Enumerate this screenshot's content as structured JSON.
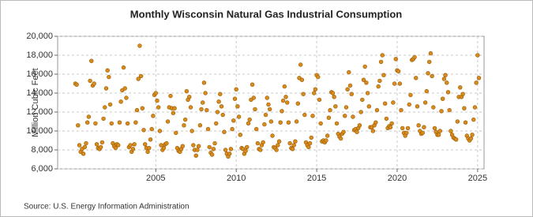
{
  "chart_data": {
    "type": "scatter",
    "title": "Monthly Wisconsin Natural Gas Industrial Consumption",
    "y_label": "Million Cubic Feet",
    "source": "Source: U.S. Energy Information Administration",
    "color": "#d98c1e",
    "grid": true,
    "xlim": [
      1998.9,
      2025.4
    ],
    "ylim": [
      6000,
      20000
    ],
    "xticks": [
      2005,
      2010,
      2015,
      2020,
      2025
    ],
    "yticks": [
      {
        "value": 6000,
        "label": "6,000"
      },
      {
        "value": 8000,
        "label": "8,000"
      },
      {
        "value": 10000,
        "label": "10,000"
      },
      {
        "value": 12000,
        "label": "12,000"
      },
      {
        "value": 14000,
        "label": "14,000"
      },
      {
        "value": 16000,
        "label": "16,000"
      },
      {
        "value": 18000,
        "label": "18,000"
      },
      {
        "value": 20000,
        "label": "20,000"
      }
    ],
    "x": [
      2000,
      2000.083,
      2000.167,
      2000.25,
      2000.333,
      2000.417,
      2000.5,
      2000.583,
      2000.667,
      2000.75,
      2000.833,
      2000.917,
      2001,
      2001.083,
      2001.167,
      2001.25,
      2001.333,
      2001.417,
      2001.5,
      2001.583,
      2001.667,
      2001.75,
      2001.833,
      2001.917,
      2002,
      2002.083,
      2002.167,
      2002.25,
      2002.333,
      2002.417,
      2002.5,
      2002.583,
      2002.667,
      2002.75,
      2002.833,
      2002.917,
      2003,
      2003.083,
      2003.167,
      2003.25,
      2003.333,
      2003.417,
      2003.5,
      2003.583,
      2003.667,
      2003.75,
      2003.833,
      2003.917,
      2004,
      2004.083,
      2004.167,
      2004.25,
      2004.333,
      2004.417,
      2004.5,
      2004.583,
      2004.667,
      2004.75,
      2004.833,
      2004.917,
      2005,
      2005.083,
      2005.167,
      2005.25,
      2005.333,
      2005.417,
      2005.5,
      2005.583,
      2005.667,
      2005.75,
      2005.833,
      2005.917,
      2006,
      2006.083,
      2006.167,
      2006.25,
      2006.333,
      2006.417,
      2006.5,
      2006.583,
      2006.667,
      2006.75,
      2006.833,
      2006.917,
      2007,
      2007.083,
      2007.167,
      2007.25,
      2007.333,
      2007.417,
      2007.5,
      2007.583,
      2007.667,
      2007.75,
      2007.833,
      2007.917,
      2008,
      2008.083,
      2008.167,
      2008.25,
      2008.333,
      2008.417,
      2008.5,
      2008.583,
      2008.667,
      2008.75,
      2008.833,
      2008.917,
      2009,
      2009.083,
      2009.167,
      2009.25,
      2009.333,
      2009.417,
      2009.5,
      2009.583,
      2009.667,
      2009.75,
      2009.833,
      2009.917,
      2010,
      2010.083,
      2010.167,
      2010.25,
      2010.333,
      2010.417,
      2010.5,
      2010.583,
      2010.667,
      2010.75,
      2010.833,
      2010.917,
      2011,
      2011.083,
      2011.167,
      2011.25,
      2011.333,
      2011.417,
      2011.5,
      2011.583,
      2011.667,
      2011.75,
      2011.833,
      2011.917,
      2012,
      2012.083,
      2012.167,
      2012.25,
      2012.333,
      2012.417,
      2012.5,
      2012.583,
      2012.667,
      2012.75,
      2012.833,
      2012.917,
      2013,
      2013.083,
      2013.167,
      2013.25,
      2013.333,
      2013.417,
      2013.5,
      2013.583,
      2013.667,
      2013.75,
      2013.833,
      2013.917,
      2014,
      2014.083,
      2014.167,
      2014.25,
      2014.333,
      2014.417,
      2014.5,
      2014.583,
      2014.667,
      2014.75,
      2014.833,
      2014.917,
      2015,
      2015.083,
      2015.167,
      2015.25,
      2015.333,
      2015.417,
      2015.5,
      2015.583,
      2015.667,
      2015.75,
      2015.833,
      2015.917,
      2016,
      2016.083,
      2016.167,
      2016.25,
      2016.333,
      2016.417,
      2016.5,
      2016.583,
      2016.667,
      2016.75,
      2016.833,
      2016.917,
      2017,
      2017.083,
      2017.167,
      2017.25,
      2017.333,
      2017.417,
      2017.5,
      2017.583,
      2017.667,
      2017.75,
      2017.833,
      2017.917,
      2018,
      2018.083,
      2018.167,
      2018.25,
      2018.333,
      2018.417,
      2018.5,
      2018.583,
      2018.667,
      2018.75,
      2018.833,
      2018.917,
      2019,
      2019.083,
      2019.167,
      2019.25,
      2019.333,
      2019.417,
      2019.5,
      2019.583,
      2019.667,
      2019.75,
      2019.833,
      2019.917,
      2020,
      2020.083,
      2020.167,
      2020.25,
      2020.333,
      2020.417,
      2020.5,
      2020.583,
      2020.667,
      2020.75,
      2020.833,
      2020.917,
      2021,
      2021.083,
      2021.167,
      2021.25,
      2021.333,
      2021.417,
      2021.5,
      2021.583,
      2021.667,
      2021.75,
      2021.833,
      2021.917,
      2022,
      2022.083,
      2022.167,
      2022.25,
      2022.333,
      2022.417,
      2022.5,
      2022.583,
      2022.667,
      2022.75,
      2022.833,
      2022.917,
      2023,
      2023.083,
      2023.167,
      2023.25,
      2023.333,
      2023.417,
      2023.5,
      2023.583,
      2023.667,
      2023.75,
      2023.833,
      2023.917,
      2024,
      2024.083,
      2024.167,
      2024.25,
      2024.333,
      2024.417,
      2024.5,
      2024.583,
      2024.667,
      2024.75,
      2024.833,
      2024.917,
      2025,
      2025.083
    ],
    "values": [
      15000,
      14900,
      10600,
      8500,
      7800,
      8100,
      7600,
      8300,
      8700,
      10900,
      11500,
      15300,
      17400,
      14800,
      15000,
      10800,
      8600,
      8200,
      8100,
      8300,
      8800,
      11300,
      12500,
      14500,
      16400,
      15700,
      12800,
      10800,
      8700,
      8400,
      8200,
      8600,
      8500,
      10900,
      13100,
      14300,
      16700,
      14500,
      13500,
      10800,
      8300,
      8500,
      7800,
      8100,
      8600,
      10900,
      12200,
      15500,
      19000,
      15800,
      12400,
      10100,
      8600,
      8200,
      7800,
      8200,
      9100,
      10200,
      11600,
      13800,
      14000,
      13200,
      12500,
      10000,
      8500,
      8000,
      8200,
      8600,
      8700,
      11000,
      12500,
      13700,
      12400,
      11900,
      12400,
      9800,
      8200,
      7900,
      7800,
      8100,
      8400,
      10600,
      11200,
      14200,
      13300,
      13600,
      12500,
      10000,
      8500,
      8000,
      7400,
      8000,
      8400,
      10600,
      12300,
      13000,
      15100,
      14000,
      12200,
      10200,
      8300,
      7700,
      7500,
      8100,
      8700,
      10800,
      12000,
      13100,
      13900,
      12600,
      11700,
      9900,
      8000,
      7600,
      7300,
      7600,
      8100,
      10200,
      11100,
      13400,
      14400,
      12600,
      11500,
      9600,
      8200,
      8100,
      7600,
      7900,
      8300,
      10800,
      11200,
      13300,
      14900,
      13500,
      12300,
      10200,
      8700,
      8100,
      8000,
      8500,
      8800,
      10700,
      11700,
      13500,
      12800,
      12300,
      11000,
      9500,
      8300,
      8200,
      8000,
      8500,
      8900,
      10900,
      12100,
      13200,
      14700,
      13600,
      13000,
      10900,
      8700,
      8200,
      8100,
      8500,
      8900,
      11000,
      12900,
      15600,
      17000,
      15400,
      13900,
      11700,
      8800,
      8500,
      8300,
      8700,
      9300,
      11600,
      14000,
      14400,
      15900,
      15700,
      13300,
      10800,
      8900,
      9000,
      8800,
      9000,
      9500,
      11400,
      12200,
      14100,
      14000,
      13600,
      12600,
      10800,
      9700,
      9400,
      9200,
      9700,
      9900,
      11600,
      12500,
      14400,
      16200,
      14800,
      13900,
      11500,
      10100,
      10200,
      9900,
      10300,
      10600,
      12000,
      13300,
      15400,
      16800,
      15100,
      14000,
      12600,
      10400,
      10400,
      10000,
      10600,
      10900,
      12200,
      14700,
      15300,
      17300,
      18000,
      15900,
      12900,
      11300,
      10300,
      10500,
      10400,
      10800,
      13000,
      15000,
      17600,
      16400,
      16300,
      15000,
      12200,
      10300,
      9800,
      9500,
      9800,
      10300,
      12800,
      13800,
      17500,
      17600,
      17800,
      15600,
      12600,
      10600,
      10000,
      9700,
      9800,
      10400,
      13000,
      14200,
      16100,
      17300,
      18200,
      15800,
      12500,
      10300,
      9900,
      9600,
      9600,
      10000,
      12100,
      13400,
      15500,
      15900,
      15100,
      14100,
      12200,
      10000,
      9600,
      9300,
      9200,
      9100,
      11000,
      13600,
      14600,
      13600,
      13900,
      12400,
      10900,
      9500,
      9200,
      9000,
      9200,
      9600,
      11200,
      12500,
      15100,
      18000,
      15600
    ]
  }
}
